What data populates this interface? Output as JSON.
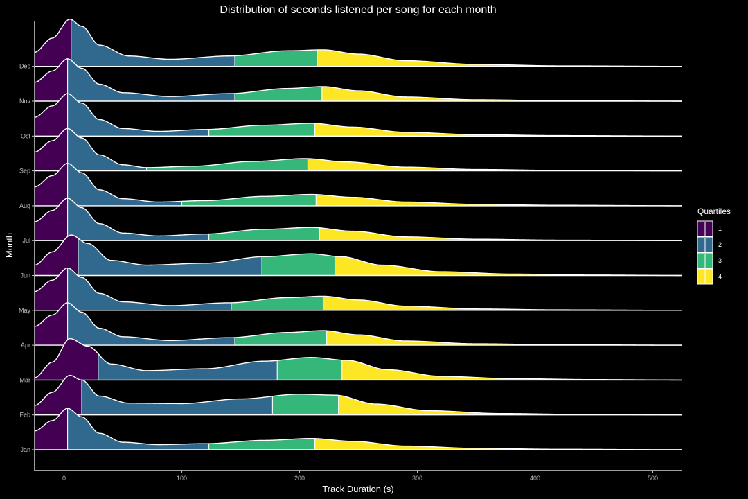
{
  "chart_data": {
    "type": "ridgeline",
    "title": "Distribution of seconds listened per song for each month",
    "xlabel": "Track Duration (s)",
    "ylabel": "Month",
    "xlim": [
      -25,
      525
    ],
    "x_ticks": [
      0,
      100,
      200,
      300,
      400,
      500
    ],
    "categories": [
      "Jan",
      "Feb",
      "Mar",
      "Apr",
      "May",
      "Jun",
      "Jul",
      "Aug",
      "Sep",
      "Oct",
      "Nov",
      "Dec"
    ],
    "grid": false,
    "legend": {
      "title": "Quartiles",
      "position": "right",
      "items": [
        {
          "label": "1",
          "color": "#440154"
        },
        {
          "label": "2",
          "color": "#31688e"
        },
        {
          "label": "3",
          "color": "#35b779"
        },
        {
          "label": "4",
          "color": "#fde725"
        }
      ]
    },
    "series": [
      {
        "month": "Jan",
        "quartiles": [
          3,
          123,
          213
        ],
        "peak": 3,
        "shape": [
          [
            -25,
            0.4
          ],
          [
            -10,
            0.62
          ],
          [
            3,
            0.88
          ],
          [
            15,
            0.7
          ],
          [
            30,
            0.35
          ],
          [
            50,
            0.16
          ],
          [
            80,
            0.11
          ],
          [
            120,
            0.13
          ],
          [
            170,
            0.2
          ],
          [
            210,
            0.24
          ],
          [
            245,
            0.18
          ],
          [
            290,
            0.08
          ],
          [
            350,
            0.03
          ],
          [
            420,
            0.01
          ],
          [
            525,
            0
          ]
        ]
      },
      {
        "month": "Feb",
        "quartiles": [
          15,
          177,
          233
        ],
        "peak": 5,
        "shape": [
          [
            -25,
            0.2
          ],
          [
            -10,
            0.48
          ],
          [
            5,
            0.84
          ],
          [
            15,
            0.74
          ],
          [
            30,
            0.4
          ],
          [
            55,
            0.25
          ],
          [
            100,
            0.24
          ],
          [
            150,
            0.34
          ],
          [
            200,
            0.44
          ],
          [
            230,
            0.42
          ],
          [
            265,
            0.23
          ],
          [
            310,
            0.09
          ],
          [
            370,
            0.03
          ],
          [
            440,
            0.01
          ],
          [
            525,
            0
          ]
        ]
      },
      {
        "month": "Mar",
        "quartiles": [
          29,
          181,
          236
        ],
        "peak": 5,
        "shape": [
          [
            -25,
            0.05
          ],
          [
            -10,
            0.38
          ],
          [
            5,
            0.88
          ],
          [
            20,
            0.72
          ],
          [
            40,
            0.34
          ],
          [
            70,
            0.2
          ],
          [
            120,
            0.24
          ],
          [
            170,
            0.4
          ],
          [
            210,
            0.48
          ],
          [
            240,
            0.42
          ],
          [
            275,
            0.22
          ],
          [
            320,
            0.08
          ],
          [
            380,
            0.03
          ],
          [
            450,
            0.01
          ],
          [
            525,
            0
          ]
        ]
      },
      {
        "month": "Apr",
        "quartiles": [
          3,
          145,
          223
        ],
        "peak": 3,
        "shape": [
          [
            -25,
            0.4
          ],
          [
            -10,
            0.64
          ],
          [
            3,
            0.9
          ],
          [
            15,
            0.7
          ],
          [
            30,
            0.36
          ],
          [
            50,
            0.18
          ],
          [
            90,
            0.1
          ],
          [
            140,
            0.16
          ],
          [
            190,
            0.27
          ],
          [
            220,
            0.31
          ],
          [
            250,
            0.22
          ],
          [
            290,
            0.09
          ],
          [
            350,
            0.03
          ],
          [
            420,
            0.01
          ],
          [
            525,
            0
          ]
        ]
      },
      {
        "month": "May",
        "quartiles": [
          3,
          142,
          220
        ],
        "peak": 3,
        "shape": [
          [
            -25,
            0.4
          ],
          [
            -10,
            0.64
          ],
          [
            3,
            0.9
          ],
          [
            15,
            0.7
          ],
          [
            30,
            0.36
          ],
          [
            50,
            0.18
          ],
          [
            90,
            0.1
          ],
          [
            140,
            0.16
          ],
          [
            190,
            0.27
          ],
          [
            220,
            0.3
          ],
          [
            250,
            0.22
          ],
          [
            290,
            0.09
          ],
          [
            350,
            0.03
          ],
          [
            420,
            0.01
          ],
          [
            525,
            0
          ]
        ]
      },
      {
        "month": "Jun",
        "quartiles": [
          12,
          168,
          230
        ],
        "peak": 6,
        "shape": [
          [
            -25,
            0.22
          ],
          [
            -10,
            0.5
          ],
          [
            6,
            0.86
          ],
          [
            20,
            0.68
          ],
          [
            40,
            0.32
          ],
          [
            70,
            0.22
          ],
          [
            120,
            0.26
          ],
          [
            170,
            0.4
          ],
          [
            210,
            0.46
          ],
          [
            235,
            0.4
          ],
          [
            270,
            0.22
          ],
          [
            320,
            0.08
          ],
          [
            380,
            0.03
          ],
          [
            450,
            0.01
          ],
          [
            525,
            0
          ]
        ]
      },
      {
        "month": "Jul",
        "quartiles": [
          3,
          123,
          217
        ],
        "peak": 3,
        "shape": [
          [
            -25,
            0.4
          ],
          [
            -10,
            0.64
          ],
          [
            3,
            0.9
          ],
          [
            15,
            0.7
          ],
          [
            30,
            0.36
          ],
          [
            50,
            0.16
          ],
          [
            80,
            0.1
          ],
          [
            120,
            0.14
          ],
          [
            170,
            0.24
          ],
          [
            210,
            0.28
          ],
          [
            245,
            0.2
          ],
          [
            290,
            0.08
          ],
          [
            350,
            0.03
          ],
          [
            420,
            0.01
          ],
          [
            525,
            0
          ]
        ]
      },
      {
        "month": "Aug",
        "quartiles": [
          3,
          100,
          214
        ],
        "peak": 3,
        "shape": [
          [
            -25,
            0.4
          ],
          [
            -10,
            0.64
          ],
          [
            3,
            0.9
          ],
          [
            15,
            0.7
          ],
          [
            30,
            0.34
          ],
          [
            50,
            0.15
          ],
          [
            80,
            0.08
          ],
          [
            120,
            0.11
          ],
          [
            170,
            0.2
          ],
          [
            210,
            0.24
          ],
          [
            245,
            0.18
          ],
          [
            290,
            0.08
          ],
          [
            350,
            0.03
          ],
          [
            420,
            0.01
          ],
          [
            525,
            0
          ]
        ]
      },
      {
        "month": "Sep",
        "quartiles": [
          3,
          70,
          207
        ],
        "peak": 3,
        "shape": [
          [
            -25,
            0.4
          ],
          [
            -10,
            0.64
          ],
          [
            3,
            0.9
          ],
          [
            15,
            0.7
          ],
          [
            30,
            0.34
          ],
          [
            50,
            0.13
          ],
          [
            70,
            0.07
          ],
          [
            110,
            0.1
          ],
          [
            160,
            0.2
          ],
          [
            205,
            0.26
          ],
          [
            240,
            0.19
          ],
          [
            290,
            0.08
          ],
          [
            350,
            0.03
          ],
          [
            420,
            0.01
          ],
          [
            525,
            0
          ]
        ]
      },
      {
        "month": "Oct",
        "quartiles": [
          3,
          123,
          213
        ],
        "peak": 3,
        "shape": [
          [
            -25,
            0.4
          ],
          [
            -10,
            0.64
          ],
          [
            3,
            0.9
          ],
          [
            15,
            0.7
          ],
          [
            30,
            0.35
          ],
          [
            50,
            0.16
          ],
          [
            80,
            0.1
          ],
          [
            120,
            0.14
          ],
          [
            170,
            0.23
          ],
          [
            210,
            0.27
          ],
          [
            245,
            0.19
          ],
          [
            290,
            0.08
          ],
          [
            350,
            0.03
          ],
          [
            420,
            0.01
          ],
          [
            525,
            0
          ]
        ]
      },
      {
        "month": "Nov",
        "quartiles": [
          3,
          145,
          219
        ],
        "peak": 3,
        "shape": [
          [
            -25,
            0.4
          ],
          [
            -10,
            0.64
          ],
          [
            3,
            0.9
          ],
          [
            15,
            0.7
          ],
          [
            30,
            0.36
          ],
          [
            50,
            0.18
          ],
          [
            90,
            0.1
          ],
          [
            140,
            0.16
          ],
          [
            190,
            0.27
          ],
          [
            220,
            0.31
          ],
          [
            250,
            0.22
          ],
          [
            290,
            0.09
          ],
          [
            350,
            0.03
          ],
          [
            420,
            0.01
          ],
          [
            525,
            0
          ]
        ]
      },
      {
        "month": "Dec",
        "quartiles": [
          6,
          145,
          215
        ],
        "peak": 5,
        "shape": [
          [
            -25,
            0.3
          ],
          [
            -10,
            0.6
          ],
          [
            5,
            1.0
          ],
          [
            15,
            0.85
          ],
          [
            30,
            0.45
          ],
          [
            55,
            0.22
          ],
          [
            90,
            0.15
          ],
          [
            140,
            0.22
          ],
          [
            190,
            0.33
          ],
          [
            220,
            0.35
          ],
          [
            250,
            0.26
          ],
          [
            290,
            0.12
          ],
          [
            350,
            0.04
          ],
          [
            420,
            0.01
          ],
          [
            525,
            0
          ]
        ]
      }
    ]
  }
}
